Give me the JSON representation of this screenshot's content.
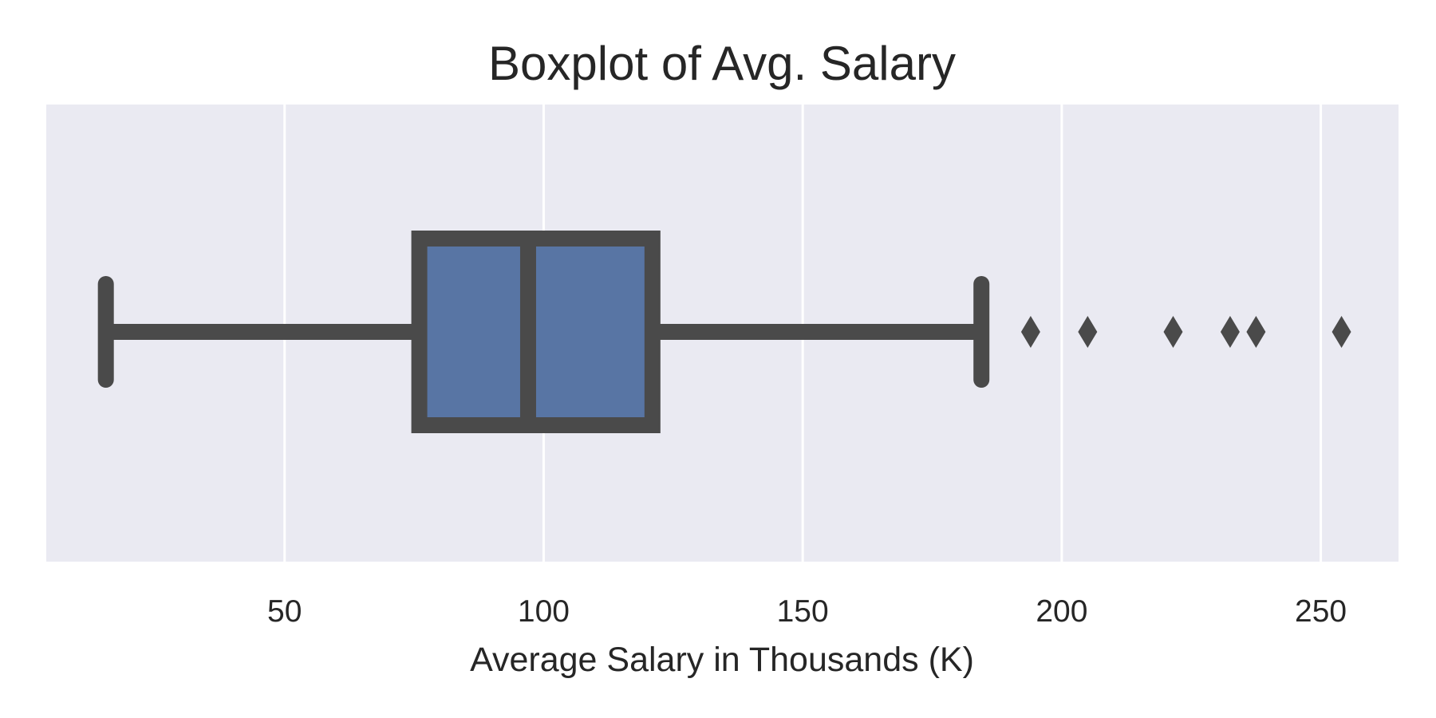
{
  "chart_data": {
    "type": "boxplot",
    "orientation": "horizontal",
    "title": "Boxplot of Avg. Salary",
    "xlabel": "Average Salary in Thousands (K)",
    "ylabel": "",
    "xlim": [
      4,
      265
    ],
    "xticks": [
      50,
      100,
      150,
      200,
      250
    ],
    "xtick_labels": [
      "50",
      "100",
      "150",
      "200",
      "250"
    ],
    "grid": true,
    "box": {
      "whisker_low": 15.5,
      "q1": 76,
      "median": 97,
      "q3": 121,
      "whisker_high": 184.5,
      "outliers": [
        194,
        205,
        221.5,
        232.5,
        237.5,
        254
      ]
    },
    "colors": {
      "box_fill": "#5875a4",
      "line": "#4a4a4a",
      "plot_background": "#eaeaf2",
      "grid": "#ffffff"
    }
  }
}
